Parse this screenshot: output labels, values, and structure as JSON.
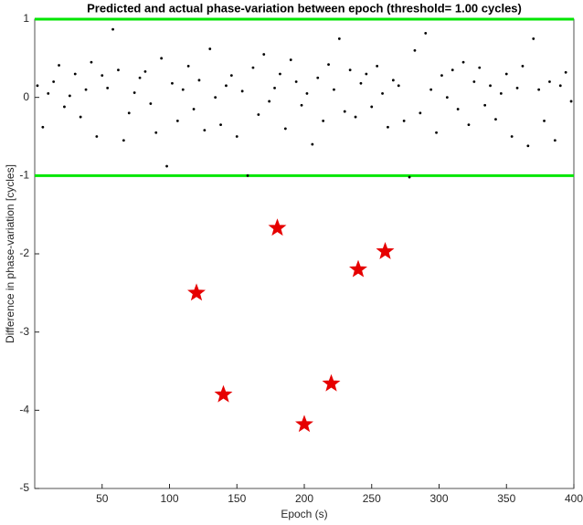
{
  "chart_data": {
    "type": "scatter",
    "title": "Predicted and actual phase-variation between epoch (threshold= 1.00 cycles)",
    "x_label": "Epoch (s)",
    "y_label": "Difference in phase-variation [cycles]",
    "xlim": [
      0,
      400
    ],
    "xticks": [
      50,
      100,
      150,
      200,
      250,
      300,
      350,
      400
    ],
    "ylim": [
      -5,
      1
    ],
    "yticks": [
      -5,
      -4,
      -3,
      -2,
      -1,
      0,
      1
    ],
    "hlines": {
      "values": [
        1,
        -1
      ],
      "color": "#00e600"
    },
    "series": [
      {
        "color": "#000000",
        "marker": "dot",
        "x": [
          2,
          6,
          10,
          14,
          18,
          22,
          26,
          30,
          34,
          38,
          42,
          46,
          50,
          54,
          58,
          62,
          66,
          70,
          74,
          78,
          82,
          86,
          90,
          94,
          98,
          102,
          106,
          110,
          114,
          118,
          122,
          126,
          130,
          134,
          138,
          142,
          146,
          150,
          154,
          158,
          162,
          166,
          170,
          174,
          178,
          182,
          186,
          190,
          194,
          198,
          202,
          206,
          210,
          214,
          218,
          222,
          226,
          230,
          234,
          238,
          242,
          246,
          250,
          254,
          258,
          262,
          266,
          270,
          274,
          278,
          282,
          286,
          290,
          294,
          298,
          302,
          306,
          310,
          314,
          318,
          322,
          326,
          330,
          334,
          338,
          342,
          346,
          350,
          354,
          358,
          362,
          366,
          370,
          374,
          378,
          382,
          386,
          390,
          394,
          398
        ],
        "values": [
          0.15,
          -0.38,
          0.05,
          0.2,
          0.41,
          -0.12,
          0.02,
          0.3,
          -0.25,
          0.1,
          0.45,
          -0.5,
          0.28,
          0.12,
          0.87,
          0.35,
          -0.55,
          -0.2,
          0.06,
          0.25,
          0.33,
          -0.08,
          -0.45,
          0.5,
          -0.88,
          0.18,
          -0.3,
          0.1,
          0.4,
          -0.15,
          0.22,
          -0.42,
          0.62,
          0.0,
          -0.35,
          0.15,
          0.28,
          -0.5,
          0.08,
          -1.0,
          0.38,
          -0.22,
          0.55,
          -0.05,
          0.12,
          0.3,
          -0.4,
          0.48,
          0.2,
          -0.1,
          0.05,
          -0.6,
          0.25,
          -0.3,
          0.42,
          0.1,
          0.75,
          -0.18,
          0.35,
          -0.25,
          0.18,
          0.3,
          -0.12,
          0.4,
          0.05,
          -0.38,
          0.22,
          0.15,
          -0.3,
          -1.02,
          0.6,
          -0.2,
          0.82,
          0.1,
          -0.45,
          0.28,
          0.0,
          0.35,
          -0.15,
          0.45,
          -0.35,
          0.2,
          0.38,
          -0.1,
          0.15,
          -0.28,
          0.05,
          0.3,
          -0.5,
          0.12,
          0.4,
          -0.62,
          0.75,
          0.1,
          -0.3,
          0.2,
          -0.55,
          0.15,
          0.32,
          -0.05
        ]
      },
      {
        "color": "#e60000",
        "marker": "star",
        "x": [
          120,
          140,
          180,
          200,
          220,
          240,
          260
        ],
        "values": [
          -2.5,
          -3.8,
          -1.67,
          -4.18,
          -3.66,
          -2.2,
          -1.97
        ]
      }
    ]
  }
}
